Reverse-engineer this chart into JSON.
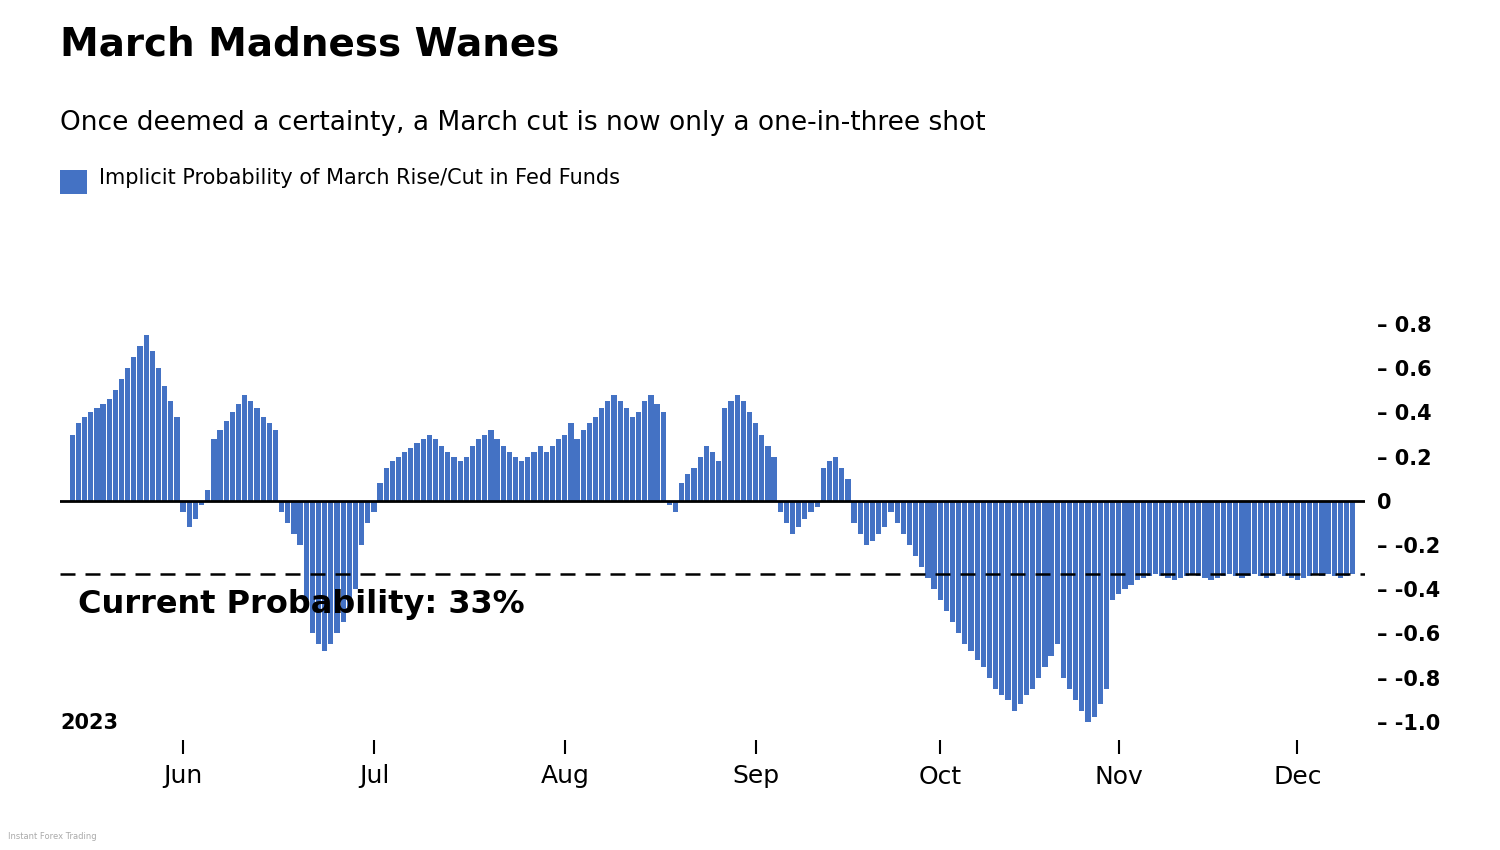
{
  "title": "March Madness Wanes",
  "subtitle": "Once deemed a certainty, a March cut is now only a one-in-three shot",
  "legend_label": "Implicit Probability of March Rise/Cut in Fed Funds",
  "bar_color": "#4472C4",
  "background_color": "#FFFFFF",
  "text_color": "#000000",
  "annotation_text": "Current Probability: 33%",
  "dashed_line_y": -0.33,
  "ylim": [
    -1.08,
    0.92
  ],
  "yticks": [
    0.8,
    0.6,
    0.4,
    0.2,
    0.0,
    -0.2,
    -0.4,
    -0.6,
    -0.8,
    -1.0
  ],
  "xlabel_2023": "2023",
  "month_labels": [
    "Jun",
    "Jul",
    "Aug",
    "Sep",
    "Oct",
    "Nov",
    "Dec"
  ],
  "month_tick_indices": [
    18,
    49,
    80,
    111,
    141,
    170,
    199
  ],
  "values": [
    0.3,
    0.35,
    0.38,
    0.4,
    0.42,
    0.44,
    0.46,
    0.5,
    0.55,
    0.6,
    0.65,
    0.7,
    0.75,
    0.68,
    0.6,
    0.52,
    0.45,
    0.38,
    -0.05,
    -0.12,
    -0.08,
    -0.02,
    0.05,
    0.28,
    0.32,
    0.36,
    0.4,
    0.44,
    0.48,
    0.45,
    0.42,
    0.38,
    0.35,
    0.32,
    -0.05,
    -0.1,
    -0.15,
    -0.2,
    -0.45,
    -0.6,
    -0.65,
    -0.68,
    -0.65,
    -0.6,
    -0.55,
    -0.48,
    -0.4,
    -0.2,
    -0.1,
    -0.05,
    0.08,
    0.15,
    0.18,
    0.2,
    0.22,
    0.24,
    0.26,
    0.28,
    0.3,
    0.28,
    0.25,
    0.22,
    0.2,
    0.18,
    0.2,
    0.25,
    0.28,
    0.3,
    0.32,
    0.28,
    0.25,
    0.22,
    0.2,
    0.18,
    0.2,
    0.22,
    0.25,
    0.22,
    0.25,
    0.28,
    0.3,
    0.35,
    0.28,
    0.32,
    0.35,
    0.38,
    0.42,
    0.45,
    0.48,
    0.45,
    0.42,
    0.38,
    0.4,
    0.45,
    0.48,
    0.44,
    0.4,
    -0.02,
    -0.05,
    0.08,
    0.12,
    0.15,
    0.2,
    0.25,
    0.22,
    0.18,
    0.42,
    0.45,
    0.48,
    0.45,
    0.4,
    0.35,
    0.3,
    0.25,
    0.2,
    -0.05,
    -0.1,
    -0.15,
    -0.12,
    -0.08,
    -0.05,
    -0.03,
    0.15,
    0.18,
    0.2,
    0.15,
    0.1,
    -0.1,
    -0.15,
    -0.2,
    -0.18,
    -0.15,
    -0.12,
    -0.05,
    -0.1,
    -0.15,
    -0.2,
    -0.25,
    -0.3,
    -0.35,
    -0.4,
    -0.45,
    -0.5,
    -0.55,
    -0.6,
    -0.65,
    -0.68,
    -0.72,
    -0.75,
    -0.8,
    -0.85,
    -0.88,
    -0.9,
    -0.95,
    -0.92,
    -0.88,
    -0.85,
    -0.8,
    -0.75,
    -0.7,
    -0.65,
    -0.8,
    -0.85,
    -0.9,
    -0.95,
    -1.0,
    -0.98,
    -0.92,
    -0.85,
    -0.45,
    -0.42,
    -0.4,
    -0.38,
    -0.36,
    -0.35,
    -0.34,
    -0.33,
    -0.34,
    -0.35,
    -0.36,
    -0.35,
    -0.34,
    -0.33,
    -0.34,
    -0.35,
    -0.36,
    -0.35,
    -0.34,
    -0.33,
    -0.34,
    -0.35,
    -0.34,
    -0.33,
    -0.34,
    -0.35,
    -0.34,
    -0.33,
    -0.34,
    -0.35,
    -0.36,
    -0.35,
    -0.34,
    -0.33,
    -0.34,
    -0.33,
    -0.34,
    -0.35,
    -0.34,
    -0.33
  ]
}
